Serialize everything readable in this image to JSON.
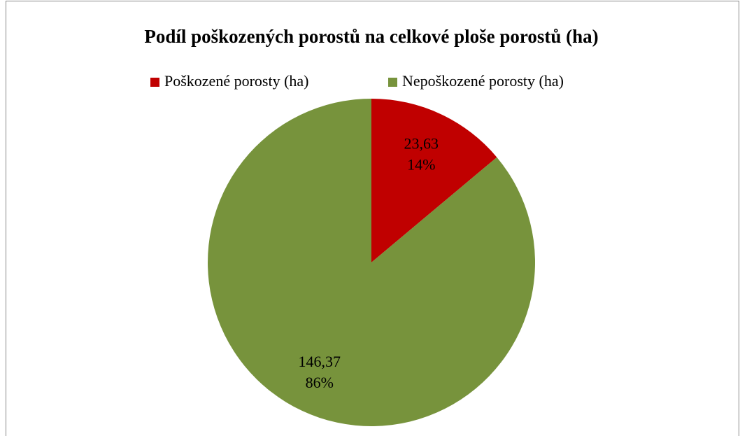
{
  "chart_data": {
    "type": "pie",
    "title": "Podíl poškozených porostů na celkové ploše porostů (ha)",
    "categories": [
      "Poškozené porosty (ha)",
      "Nepoškozené porosty (ha)"
    ],
    "values": [
      23.63,
      146.37
    ],
    "value_labels": [
      "23,63",
      "146,37"
    ],
    "percents": [
      14,
      86
    ],
    "percent_labels": [
      "14%",
      "86%"
    ],
    "colors": [
      "#c00000",
      "#77933c"
    ],
    "legend": "top"
  }
}
